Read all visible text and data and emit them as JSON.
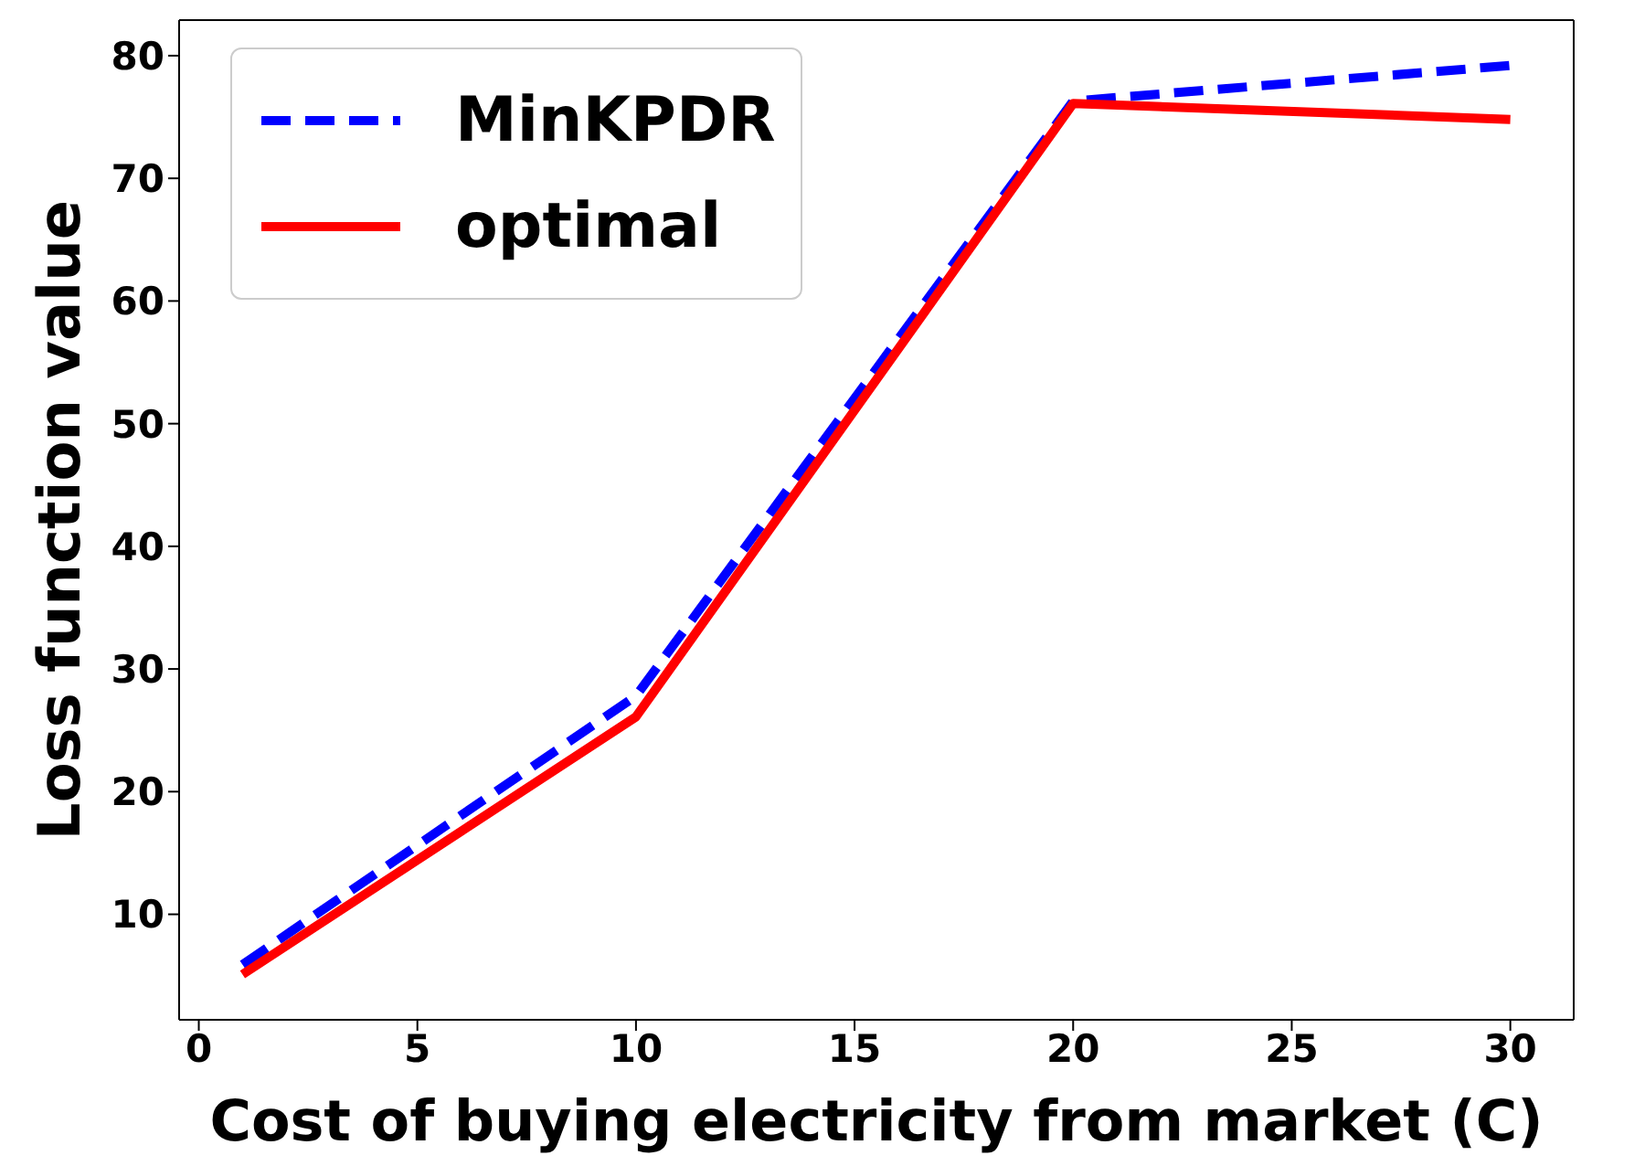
{
  "chart_data": {
    "type": "line",
    "xlabel": "Cost of buying electricity from market (C)",
    "ylabel": "Loss function value",
    "x": [
      1,
      10,
      20,
      30
    ],
    "series": [
      {
        "name": "MinKPDR",
        "color": "#0000ff",
        "line_style": "dashed",
        "values": [
          5.9,
          27.8,
          76.3,
          79.2
        ]
      },
      {
        "name": "optimal",
        "color": "#ff0000",
        "line_style": "solid",
        "values": [
          5.1,
          26.1,
          76.1,
          74.8
        ]
      }
    ],
    "xlim": [
      -0.45,
      31.45
    ],
    "xticks": [
      0,
      5,
      10,
      15,
      20,
      25,
      30
    ],
    "ylim": [
      1.4,
      82.9
    ],
    "yticks": [
      10,
      20,
      30,
      40,
      50,
      60,
      70,
      80
    ],
    "grid": false,
    "legend": "top left"
  }
}
